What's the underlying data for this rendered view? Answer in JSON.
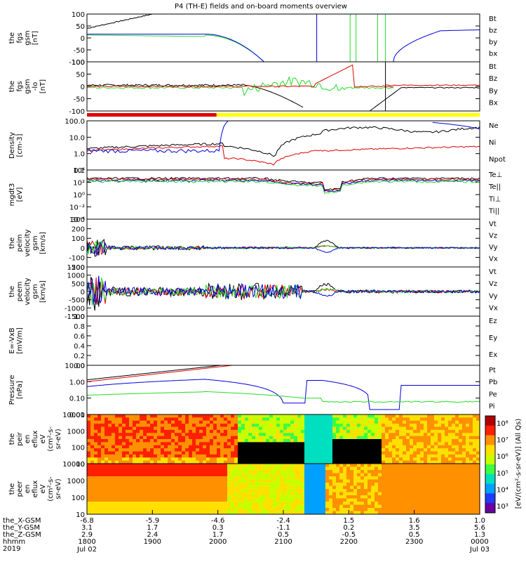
{
  "title": "P4 (TH-E) fields and on-board moments overview",
  "colors": {
    "black": "#000000",
    "red": "#e00000",
    "green": "#22dd22",
    "blue": "#0000dd",
    "yellow": "#ffff00"
  },
  "chart_data": [
    {
      "id": "fgs",
      "type": "line",
      "ylabel": [
        "the",
        "fgs",
        "gsm",
        "[nT]"
      ],
      "ylim": [
        -100,
        100
      ],
      "ytick_labels": [
        "100",
        "50",
        "0",
        "-50",
        "-100"
      ],
      "legend": [
        {
          "name": "Bt",
          "color": "#000000"
        },
        {
          "name": "bz",
          "color": "#e00000"
        },
        {
          "name": "by",
          "color": "#22dd22"
        },
        {
          "name": "bx",
          "color": "#0000dd"
        }
      ]
    },
    {
      "id": "fgs_lo",
      "type": "line",
      "ylabel": [
        "the",
        "fgs",
        "gsm",
        "-lo",
        "[nT]"
      ],
      "ylim": [
        -100,
        100
      ],
      "ytick_labels": [
        "100",
        "50",
        "0",
        "-50",
        "-100"
      ],
      "legend": [
        {
          "name": "Bt",
          "color": "#000000"
        },
        {
          "name": "Bz",
          "color": "#e00000"
        },
        {
          "name": "By",
          "color": "#22dd22"
        },
        {
          "name": "Bx",
          "color": "#0000dd"
        }
      ]
    },
    {
      "id": "density",
      "type": "line",
      "ylabel": [
        "Density",
        "[cm-3]"
      ],
      "ylim": [
        0.1,
        100
      ],
      "log": true,
      "ytick_labels": [
        "100.0",
        "10.0",
        "1.0",
        "0.1"
      ],
      "legend": [
        {
          "name": "Ne",
          "color": "#e00000"
        },
        {
          "name": "Ni",
          "color": "#000000"
        },
        {
          "name": "Npot",
          "color": "#0000dd"
        }
      ]
    },
    {
      "id": "temp",
      "type": "line",
      "ylabel": [
        "mgdt3",
        "[eV]"
      ],
      "log": true,
      "ytick_labels": [
        "10⁴",
        "10²",
        "10⁰",
        "10⁻²",
        "10⁻⁴"
      ],
      "legend": [
        {
          "name": "Te⊥",
          "color": "#e00000"
        },
        {
          "name": "Te||",
          "color": "#000000"
        },
        {
          "name": "Ti⊥",
          "color": "#0000dd"
        },
        {
          "name": "Ti||",
          "color": "#22dd22"
        }
      ]
    },
    {
      "id": "peim",
      "type": "line",
      "ylabel": [
        "the",
        "peim",
        "velocity",
        "gsm",
        "[km/s]"
      ],
      "ylim": [
        -200,
        300
      ],
      "ytick_labels": [
        "300",
        "200",
        "100",
        "0",
        "-100",
        "-200"
      ],
      "legend": [
        {
          "name": "Vt",
          "color": "#000000"
        },
        {
          "name": "Vz",
          "color": "#e00000"
        },
        {
          "name": "Vy",
          "color": "#22dd22"
        },
        {
          "name": "Vx",
          "color": "#0000dd"
        }
      ]
    },
    {
      "id": "peem",
      "type": "line",
      "ylabel": [
        "the",
        "peem",
        "velocity",
        "gsm",
        "[km/s]"
      ],
      "ylim": [
        -1500,
        1500
      ],
      "ytick_labels": [
        "1500",
        "1000",
        "500",
        "0",
        "-500",
        "-1000",
        "-1500"
      ],
      "legend": [
        {
          "name": "Vt",
          "color": "#000000"
        },
        {
          "name": "Vz",
          "color": "#e00000"
        },
        {
          "name": "Vy",
          "color": "#22dd22"
        },
        {
          "name": "Vx",
          "color": "#0000dd"
        }
      ]
    },
    {
      "id": "efield",
      "type": "line",
      "ylabel": [
        "E=-VxB",
        "[mV/m]"
      ],
      "ylim": [
        0,
        1
      ],
      "ytick_labels": [
        "1.0",
        "0.8",
        "0.6",
        "0.4",
        "0.2",
        "0.0"
      ],
      "legend": [
        {
          "name": "Ez",
          "color": "#e00000"
        },
        {
          "name": "Ey",
          "color": "#22dd22"
        },
        {
          "name": "Ex",
          "color": "#0000dd"
        }
      ]
    },
    {
      "id": "pressure",
      "type": "line",
      "ylabel": [
        "Pressure",
        "[nPa]"
      ],
      "ylim": [
        0.01,
        10
      ],
      "log": true,
      "ytick_labels": [
        "10.00",
        "1.00",
        "0.10",
        "0.01"
      ],
      "legend": [
        {
          "name": "Pt",
          "color": "#000000"
        },
        {
          "name": "Pb",
          "color": "#e00000"
        },
        {
          "name": "Pe",
          "color": "#22dd22"
        },
        {
          "name": "Pi",
          "color": "#0000dd"
        }
      ]
    },
    {
      "id": "peir",
      "type": "heatmap",
      "ylabel": [
        "the",
        "peir",
        "en",
        "eflux",
        "eV",
        "(cm²-s-",
        "sr-eV)"
      ],
      "log": true,
      "ytick_labels": [
        "10000",
        "1000",
        "100",
        "10"
      ]
    },
    {
      "id": "peer",
      "type": "heatmap",
      "ylabel": [
        "the",
        "peer",
        "en",
        "eflux",
        "eV",
        "(cm²-s-",
        "sr-eV)"
      ],
      "log": true,
      "ytick_labels": [
        "10000",
        "1000",
        "100",
        "10"
      ]
    }
  ],
  "colorbar": {
    "label": "[eV/(cm²-s-sr-eV)] (All Qs)",
    "ticks": [
      "10⁸",
      "10⁷",
      "10⁶",
      "10⁵",
      "10⁴",
      "10³"
    ]
  },
  "xaxis": {
    "row_labels": [
      "the_X-GSM",
      "the_Y-GSM",
      "the_Z-GSM",
      "hhmm",
      "2019"
    ],
    "x_gsm": [
      "-6.8",
      "-5.9",
      "-4.6",
      "-2.4",
      "1.5",
      "1.6",
      "1.0"
    ],
    "y_gsm": [
      "3.1",
      "1.7",
      "0.3",
      "-1.1",
      "0.2",
      "3.5",
      "5.6"
    ],
    "z_gsm": [
      "2.9",
      "2.4",
      "1.7",
      "0.5",
      "-0.5",
      "0.5",
      "1.3"
    ],
    "hhmm": [
      "1800",
      "1900",
      "2000",
      "2100",
      "2200",
      "2300",
      "0000"
    ],
    "dates": [
      "Jul 02",
      "Jul 03"
    ]
  }
}
